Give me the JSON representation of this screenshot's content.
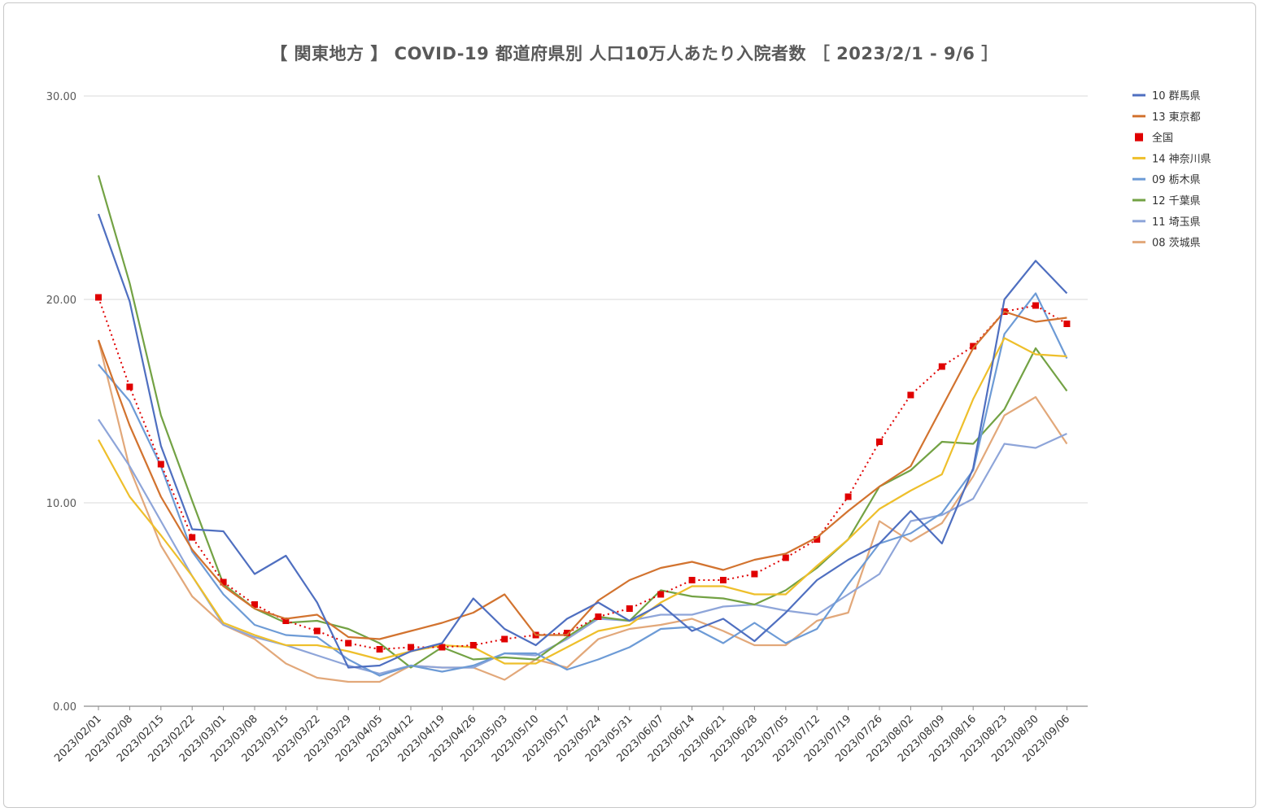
{
  "chart_data": {
    "type": "line",
    "title": "【 関東地方 】 COVID-19 都道府県別 人口10万人あたり入院者数 ［ 2023/2/1 - 9/6 ］",
    "xlabel": "",
    "ylabel": "",
    "ylim": [
      0,
      30
    ],
    "yticks": [
      "0.00",
      "10.00",
      "20.00",
      "30.00"
    ],
    "grid": true,
    "legend_position": "right",
    "categories": [
      "2023/02/01",
      "2023/02/08",
      "2023/02/15",
      "2023/02/22",
      "2023/03/01",
      "2023/03/08",
      "2023/03/15",
      "2023/03/22",
      "2023/03/29",
      "2023/04/05",
      "2023/04/12",
      "2023/04/19",
      "2023/04/26",
      "2023/05/03",
      "2023/05/10",
      "2023/05/17",
      "2023/05/24",
      "2023/05/31",
      "2023/06/07",
      "2023/06/14",
      "2023/06/21",
      "2023/06/28",
      "2023/07/05",
      "2023/07/12",
      "2023/07/19",
      "2023/07/26",
      "2023/08/02",
      "2023/08/09",
      "2023/08/16",
      "2023/08/23",
      "2023/08/30",
      "2023/09/06"
    ],
    "series": [
      {
        "name": "10 群馬県",
        "color": "#4f6fc0",
        "style": "solid",
        "values": [
          24.2,
          19.9,
          12.8,
          8.7,
          8.6,
          6.5,
          7.4,
          5.1,
          1.9,
          2.0,
          2.7,
          3.1,
          5.3,
          3.8,
          3.0,
          4.3,
          5.1,
          4.2,
          5.0,
          3.7,
          4.3,
          3.2,
          4.6,
          6.2,
          7.2,
          8.0,
          9.6,
          8.0,
          11.7,
          20.0,
          21.9,
          20.3
        ]
      },
      {
        "name": "13 東京都",
        "color": "#d2732f",
        "style": "solid",
        "values": [
          18.0,
          13.8,
          10.3,
          7.7,
          5.9,
          4.8,
          4.3,
          4.5,
          3.4,
          3.3,
          3.7,
          4.1,
          4.6,
          5.5,
          3.5,
          3.5,
          5.2,
          6.2,
          6.8,
          7.1,
          6.7,
          7.2,
          7.5,
          8.3,
          9.6,
          10.8,
          11.8,
          14.7,
          17.6,
          19.4,
          18.9,
          19.1
        ]
      },
      {
        "name": "全国",
        "color": "#e00000",
        "style": "dotted",
        "marker": "square",
        "values": [
          20.1,
          15.7,
          11.9,
          8.3,
          6.1,
          5.0,
          4.2,
          3.7,
          3.1,
          2.8,
          2.9,
          2.9,
          3.0,
          3.3,
          3.5,
          3.6,
          4.4,
          4.8,
          5.5,
          6.2,
          6.2,
          6.5,
          7.3,
          8.2,
          10.3,
          13.0,
          15.3,
          16.7,
          17.7,
          19.4,
          19.7,
          18.8
        ]
      },
      {
        "name": "14 神奈川県",
        "color": "#eebf2b",
        "style": "solid",
        "values": [
          13.1,
          10.3,
          8.4,
          6.4,
          4.1,
          3.5,
          3.0,
          3.0,
          2.7,
          2.3,
          2.7,
          3.0,
          2.9,
          2.1,
          2.1,
          2.9,
          3.7,
          4.0,
          5.1,
          5.9,
          5.9,
          5.5,
          5.5,
          6.9,
          8.2,
          9.7,
          10.6,
          11.4,
          15.1,
          18.1,
          17.3,
          17.2
        ]
      },
      {
        "name": "09 栃木県",
        "color": "#6d9bd6",
        "style": "solid",
        "values": [
          16.8,
          15.0,
          11.8,
          7.6,
          5.5,
          4.0,
          3.5,
          3.4,
          2.3,
          1.5,
          2.0,
          1.7,
          2.0,
          2.6,
          2.6,
          1.8,
          2.3,
          2.9,
          3.8,
          3.9,
          3.1,
          4.1,
          3.1,
          3.8,
          6.0,
          8.0,
          8.5,
          9.5,
          11.6,
          18.3,
          20.3,
          17.1
        ]
      },
      {
        "name": "12 千葉県",
        "color": "#73a244",
        "style": "solid",
        "values": [
          26.1,
          20.8,
          14.3,
          10.1,
          6.0,
          4.8,
          4.1,
          4.2,
          3.8,
          3.1,
          1.9,
          2.9,
          2.3,
          2.4,
          2.3,
          3.4,
          4.4,
          4.2,
          5.7,
          5.4,
          5.3,
          5.0,
          5.7,
          6.8,
          8.2,
          10.8,
          11.6,
          13.0,
          12.9,
          14.6,
          17.6,
          15.5
        ]
      },
      {
        "name": "11 埼玉県",
        "color": "#8ea5d9",
        "style": "solid",
        "values": [
          14.1,
          11.8,
          9.1,
          6.4,
          4.0,
          3.4,
          3.0,
          2.5,
          2.0,
          1.6,
          2.0,
          1.9,
          1.9,
          2.6,
          2.5,
          3.3,
          4.3,
          4.2,
          4.5,
          4.5,
          4.9,
          5.0,
          4.7,
          4.5,
          5.5,
          6.5,
          9.1,
          9.4,
          10.2,
          12.9,
          12.7,
          13.4
        ]
      },
      {
        "name": "08 茨城県",
        "color": "#e2a87a",
        "style": "solid",
        "values": [
          18.0,
          11.7,
          7.9,
          5.4,
          4.0,
          3.3,
          2.1,
          1.4,
          1.2,
          1.2,
          2.0,
          1.9,
          1.9,
          1.3,
          2.3,
          1.9,
          3.3,
          3.8,
          4.0,
          4.3,
          3.7,
          3.0,
          3.0,
          4.2,
          4.6,
          9.1,
          8.1,
          9.0,
          11.3,
          14.3,
          15.2,
          12.9
        ]
      }
    ]
  }
}
